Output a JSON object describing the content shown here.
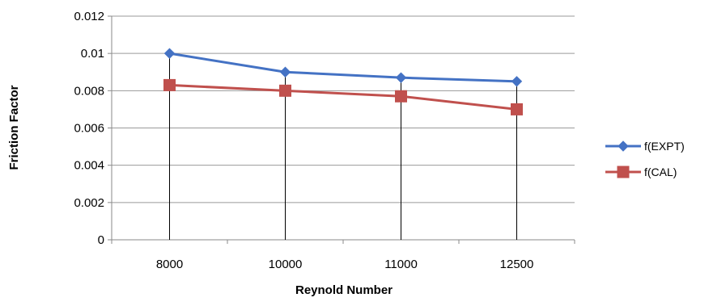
{
  "chart_data": {
    "type": "line",
    "categories": [
      "8000",
      "10000",
      "11000",
      "12500"
    ],
    "series": [
      {
        "name": "f(EXPT)",
        "values": [
          0.01,
          0.009,
          0.0087,
          0.0085
        ],
        "color": "#4472C4",
        "marker": "diamond"
      },
      {
        "name": "f(CAL)",
        "values": [
          0.0083,
          0.008,
          0.0077,
          0.007
        ],
        "color": "#C0504D",
        "marker": "square"
      }
    ],
    "title": "",
    "xlabel": "Reynold Number",
    "ylabel": "Friction Factor",
    "ylim": [
      0,
      0.012
    ],
    "yticks": [
      "0",
      "0.002",
      "0.004",
      "0.006",
      "0.008",
      "0.01",
      "0.012"
    ],
    "ytick_values": [
      0,
      0.002,
      0.004,
      0.006,
      0.008,
      0.01,
      0.012
    ],
    "drop_lines": true,
    "grid": "horizontal",
    "legend_position": "right"
  }
}
